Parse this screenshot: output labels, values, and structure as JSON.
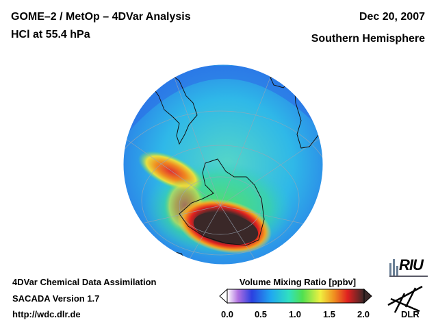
{
  "header": {
    "title": "GOME–2 / MetOp – 4DVar Analysis",
    "species": "HCl at 55.4 hPa",
    "date": "Dec 20, 2007",
    "region": "Southern Hemisphere"
  },
  "footer": {
    "line1": "4DVar Chemical Data Assimilation",
    "line2": "SACADA Version 1.7",
    "line3": "http://wdc.dlr.de"
  },
  "colorbar": {
    "title": "Volume Mixing Ratio [ppbv]",
    "ticks": [
      "0.0",
      "0.5",
      "1.0",
      "1.5",
      "2.0"
    ],
    "range": [
      0.0,
      2.0
    ]
  },
  "logos": {
    "riu": "RIU",
    "dlr": "DLR"
  },
  "colors": {
    "background": "#3a8df0",
    "mid": "#36d3c0",
    "green": "#4ee07a",
    "high": "#e02020",
    "max": "#3a2a2a"
  }
}
